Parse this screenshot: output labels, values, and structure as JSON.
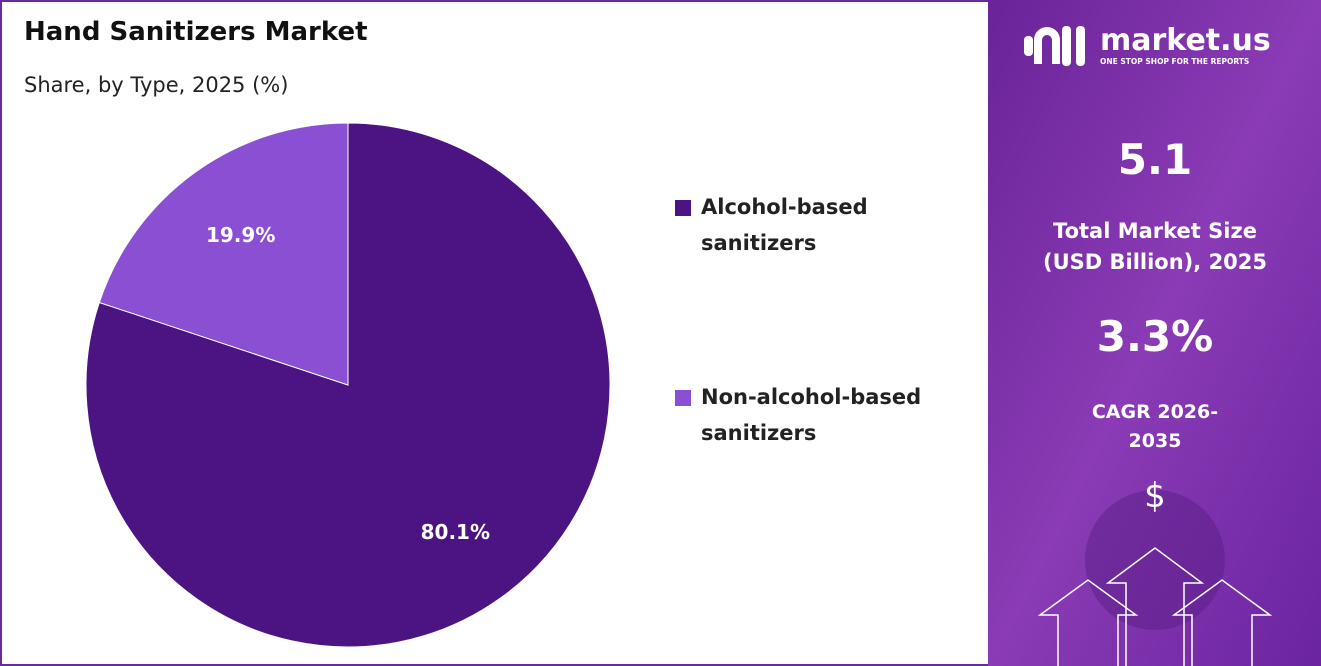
{
  "chart_data": {
    "type": "pie",
    "title": "Hand Sanitizers Market",
    "subtitle": "Share, by Type, 2025 (%)",
    "categories": [
      "Alcohol-based sanitizers",
      "Non-alcohol-based sanitizers"
    ],
    "values": [
      80.1,
      19.9
    ],
    "value_labels": [
      "80.1%",
      "19.9%"
    ],
    "colors": [
      "#4c1482",
      "#8a4fd3"
    ]
  },
  "panel": {
    "brand": "market.us",
    "tagline": "ONE STOP SHOP FOR THE REPORTS",
    "market_size": "5.1",
    "market_size_label": "Total Market Size (USD Billion), 2025",
    "cagr": "3.3%",
    "cagr_label": "CAGR 2026-2035",
    "currency_icon": "$"
  }
}
